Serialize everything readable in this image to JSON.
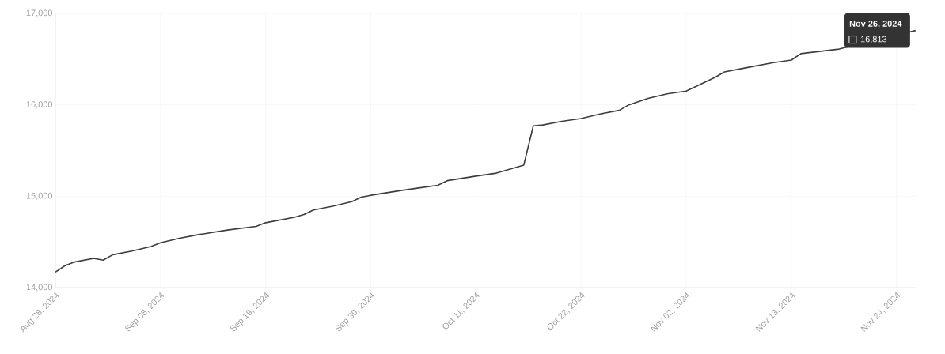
{
  "chart_data": {
    "type": "line",
    "x": [
      "2024-08-28",
      "2024-08-29",
      "2024-08-30",
      "2024-09-01",
      "2024-09-02",
      "2024-09-03",
      "2024-09-05",
      "2024-09-07",
      "2024-09-08",
      "2024-09-10",
      "2024-09-12",
      "2024-09-15",
      "2024-09-18",
      "2024-09-19",
      "2024-09-22",
      "2024-09-23",
      "2024-09-24",
      "2024-09-26",
      "2024-09-28",
      "2024-09-29",
      "2024-09-30",
      "2024-10-03",
      "2024-10-05",
      "2024-10-07",
      "2024-10-08",
      "2024-10-11",
      "2024-10-13",
      "2024-10-15",
      "2024-10-16",
      "2024-10-17",
      "2024-10-18",
      "2024-10-20",
      "2024-10-22",
      "2024-10-24",
      "2024-10-26",
      "2024-10-27",
      "2024-10-29",
      "2024-10-31",
      "2024-11-02",
      "2024-11-05",
      "2024-11-06",
      "2024-11-08",
      "2024-11-11",
      "2024-11-13",
      "2024-11-14",
      "2024-11-18",
      "2024-11-19",
      "2024-11-24",
      "2024-11-26"
    ],
    "series": [
      {
        "color": "#3d3d3d",
        "values": [
          14170,
          14240,
          14280,
          14320,
          14300,
          14360,
          14400,
          14450,
          14490,
          14540,
          14580,
          14630,
          14670,
          14710,
          14770,
          14800,
          14850,
          14890,
          14940,
          14990,
          15010,
          15060,
          15090,
          15120,
          15170,
          15220,
          15250,
          15310,
          15340,
          15770,
          15780,
          15820,
          15850,
          15900,
          15940,
          16000,
          16070,
          16120,
          16150,
          16300,
          16360,
          16400,
          16460,
          16490,
          16560,
          16610,
          null,
          null,
          16813
        ]
      }
    ],
    "xlim": [
      "2024-08-28",
      "2024-11-26"
    ],
    "xticks": [
      {
        "value": "2024-08-28",
        "label": "Aug 28, 2024"
      },
      {
        "value": "2024-09-08",
        "label": "Sep 08, 2024"
      },
      {
        "value": "2024-09-19",
        "label": "Sep 19, 2024"
      },
      {
        "value": "2024-09-30",
        "label": "Sep 30, 2024"
      },
      {
        "value": "2024-10-11",
        "label": "Oct 11, 2024"
      },
      {
        "value": "2024-10-22",
        "label": "Oct 22, 2024"
      },
      {
        "value": "2024-11-02",
        "label": "Nov 02, 2024"
      },
      {
        "value": "2024-11-13",
        "label": "Nov 13, 2024"
      },
      {
        "value": "2024-11-24",
        "label": "Nov 24, 2024"
      }
    ],
    "ylim": [
      14000,
      17000
    ],
    "yticks": [
      {
        "value": 14000,
        "label": "14,000"
      },
      {
        "value": 15000,
        "label": "15,000"
      },
      {
        "value": 16000,
        "label": "16,000"
      },
      {
        "value": 17000,
        "label": "17,000"
      }
    ],
    "grid": true,
    "marker": "none",
    "line_style": "solid",
    "annotations": [
      {
        "text": "Nov 26, 2024",
        "x": "2024-11-26",
        "y": 16813
      },
      "16,813"
    ]
  }
}
